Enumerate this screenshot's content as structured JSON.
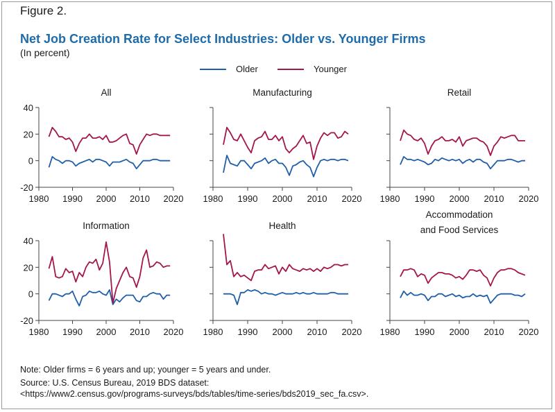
{
  "figure": {
    "label": "Figure 2.",
    "title": "Net Job Creation Rate for Select Industries: Older vs. Younger Firms",
    "subtitle": "(In percent)"
  },
  "legend": [
    {
      "name": "Older",
      "color": "#1f5ea8"
    },
    {
      "name": "Younger",
      "color": "#a3154b"
    }
  ],
  "notes": {
    "note": "Note: Older firms = 6 years and up; younger = 5 years and under.",
    "source": "Source: U.S. Census Bureau, 2019 BDS dataset:",
    "url": "<https://www2.census.gov/programs-surveys/bds/tables/time-series/bds2019_sec_fa.csv>."
  },
  "chart_data": [
    {
      "type": "line",
      "title": "All",
      "x": [
        1983,
        1984,
        1985,
        1986,
        1987,
        1988,
        1989,
        1990,
        1991,
        1992,
        1993,
        1994,
        1995,
        1996,
        1997,
        1998,
        1999,
        2000,
        2001,
        2002,
        2003,
        2004,
        2005,
        2006,
        2007,
        2008,
        2009,
        2010,
        2011,
        2012,
        2013,
        2014,
        2015,
        2016,
        2017,
        2018,
        2019
      ],
      "series": [
        {
          "name": "Older",
          "values": [
            -5,
            3,
            1,
            0,
            -2,
            0,
            0,
            -1,
            -4,
            -2,
            -1,
            0,
            1,
            -1,
            1,
            1,
            0,
            -1,
            -4,
            -1,
            -1,
            -1,
            0,
            1,
            -1,
            -2,
            -6,
            -3,
            0,
            0,
            0,
            1,
            1,
            0,
            0,
            0,
            0
          ]
        },
        {
          "name": "Younger",
          "values": [
            18,
            25,
            22,
            18,
            18,
            16,
            17,
            14,
            7,
            13,
            17,
            17,
            20,
            17,
            17,
            18,
            16,
            19,
            14,
            14,
            15,
            17,
            19,
            20,
            13,
            12,
            5,
            12,
            16,
            20,
            19,
            20,
            20,
            19,
            19,
            19,
            19
          ]
        }
      ],
      "xlim": [
        1980,
        2020
      ],
      "ylim": [
        -20,
        40
      ],
      "xticks": [
        "1980",
        "1990",
        "2000",
        "2010",
        "2020"
      ],
      "yticks": [
        "40",
        "20",
        "0",
        "-20"
      ]
    },
    {
      "type": "line",
      "title": "Manufacturing",
      "x": [
        1983,
        1984,
        1985,
        1986,
        1987,
        1988,
        1989,
        1990,
        1991,
        1992,
        1993,
        1994,
        1995,
        1996,
        1997,
        1998,
        1999,
        2000,
        2001,
        2002,
        2003,
        2004,
        2005,
        2006,
        2007,
        2008,
        2009,
        2010,
        2011,
        2012,
        2013,
        2014,
        2015,
        2016,
        2017,
        2018,
        2019
      ],
      "series": [
        {
          "name": "Older",
          "values": [
            -9,
            4,
            -2,
            -3,
            -4,
            0,
            0,
            -3,
            -6,
            -2,
            -1,
            0,
            2,
            -2,
            0,
            1,
            -2,
            -2,
            -5,
            -11,
            -4,
            -3,
            -1,
            0,
            -3,
            -5,
            -12,
            -5,
            0,
            1,
            0,
            1,
            1,
            0,
            1,
            1,
            0
          ]
        },
        {
          "name": "Younger",
          "values": [
            12,
            25,
            21,
            16,
            15,
            20,
            15,
            10,
            6,
            15,
            17,
            18,
            22,
            16,
            16,
            19,
            15,
            18,
            9,
            6,
            9,
            11,
            15,
            19,
            13,
            14,
            1,
            11,
            17,
            21,
            19,
            21,
            21,
            17,
            18,
            22,
            20
          ]
        }
      ],
      "xlim": [
        1980,
        2020
      ],
      "ylim": [
        -20,
        40
      ],
      "xticks": [
        "1980",
        "1990",
        "2000",
        "2010",
        "2020"
      ],
      "yticks": []
    },
    {
      "type": "line",
      "title": "Retail",
      "x": [
        1983,
        1984,
        1985,
        1986,
        1987,
        1988,
        1989,
        1990,
        1991,
        1992,
        1993,
        1994,
        1995,
        1996,
        1997,
        1998,
        1999,
        2000,
        2001,
        2002,
        2003,
        2004,
        2005,
        2006,
        2007,
        2008,
        2009,
        2010,
        2011,
        2012,
        2013,
        2014,
        2015,
        2016,
        2017,
        2018,
        2019
      ],
      "series": [
        {
          "name": "Older",
          "values": [
            -3,
            3,
            1,
            1,
            0,
            1,
            0,
            -1,
            -3,
            -2,
            1,
            0,
            2,
            1,
            0,
            1,
            0,
            1,
            -2,
            0,
            1,
            -1,
            1,
            1,
            -1,
            -2,
            -6,
            -3,
            0,
            0,
            0,
            1,
            1,
            0,
            -1,
            0,
            0
          ]
        },
        {
          "name": "Younger",
          "values": [
            15,
            23,
            20,
            19,
            16,
            15,
            17,
            13,
            5,
            11,
            15,
            16,
            18,
            15,
            15,
            16,
            14,
            18,
            11,
            15,
            16,
            17,
            17,
            15,
            14,
            11,
            4,
            11,
            14,
            18,
            17,
            18,
            19,
            19,
            15,
            15,
            15
          ]
        }
      ],
      "xlim": [
        1980,
        2020
      ],
      "ylim": [
        -20,
        40
      ],
      "xticks": [
        "1980",
        "1990",
        "2000",
        "2010",
        "2020"
      ],
      "yticks": []
    },
    {
      "type": "line",
      "title": "Information",
      "x": [
        1983,
        1984,
        1985,
        1986,
        1987,
        1988,
        1989,
        1990,
        1991,
        1992,
        1993,
        1994,
        1995,
        1996,
        1997,
        1998,
        1999,
        2000,
        2001,
        2002,
        2003,
        2004,
        2005,
        2006,
        2007,
        2008,
        2009,
        2010,
        2011,
        2012,
        2013,
        2014,
        2015,
        2016,
        2017,
        2018,
        2019
      ],
      "series": [
        {
          "name": "Older",
          "values": [
            -5,
            0,
            0,
            -1,
            -2,
            0,
            0,
            2,
            -4,
            -9,
            -2,
            -1,
            2,
            1,
            1,
            2,
            0,
            -1,
            3,
            -8,
            -4,
            -6,
            -3,
            -1,
            -1,
            -1,
            -5,
            -6,
            -2,
            -2,
            0,
            1,
            0,
            0,
            -4,
            -1,
            -1
          ]
        },
        {
          "name": "Younger",
          "values": [
            19,
            28,
            13,
            12,
            13,
            19,
            16,
            17,
            9,
            16,
            13,
            20,
            24,
            23,
            26,
            18,
            23,
            39,
            24,
            -7,
            4,
            10,
            16,
            20,
            13,
            12,
            5,
            13,
            27,
            33,
            20,
            21,
            24,
            23,
            20,
            21,
            21
          ]
        }
      ],
      "xlim": [
        1980,
        2020
      ],
      "ylim": [
        -20,
        40
      ],
      "xticks": [
        "1980",
        "1990",
        "2000",
        "2010",
        "2020"
      ],
      "yticks": [
        "40",
        "20",
        "0",
        "-20"
      ]
    },
    {
      "type": "line",
      "title": "Health",
      "x": [
        1983,
        1984,
        1985,
        1986,
        1987,
        1988,
        1989,
        1990,
        1991,
        1992,
        1993,
        1994,
        1995,
        1996,
        1997,
        1998,
        1999,
        2000,
        2001,
        2002,
        2003,
        2004,
        2005,
        2006,
        2007,
        2008,
        2009,
        2010,
        2011,
        2012,
        2013,
        2014,
        2015,
        2016,
        2017,
        2018,
        2019
      ],
      "series": [
        {
          "name": "Older",
          "values": [
            0,
            0,
            0,
            -1,
            -8,
            1,
            1,
            3,
            2,
            3,
            2,
            0,
            1,
            0,
            0,
            -1,
            0,
            1,
            0,
            0,
            0,
            1,
            0,
            1,
            0,
            0,
            1,
            0,
            0,
            0,
            0,
            1,
            1,
            0,
            0,
            0,
            0
          ]
        },
        {
          "name": "Younger",
          "values": [
            45,
            22,
            25,
            13,
            16,
            13,
            14,
            12,
            10,
            17,
            18,
            18,
            22,
            19,
            20,
            21,
            15,
            20,
            17,
            22,
            19,
            18,
            17,
            19,
            18,
            19,
            17,
            19,
            17,
            20,
            19,
            20,
            22,
            22,
            21,
            22,
            22
          ]
        }
      ],
      "xlim": [
        1980,
        2020
      ],
      "ylim": [
        -20,
        40
      ],
      "xticks": [
        "1980",
        "1990",
        "2000",
        "2010",
        "2020"
      ],
      "yticks": []
    },
    {
      "type": "line",
      "title": "Accommodation and Food Services",
      "x": [
        1983,
        1984,
        1985,
        1986,
        1987,
        1988,
        1989,
        1990,
        1991,
        1992,
        1993,
        1994,
        1995,
        1996,
        1997,
        1998,
        1999,
        2000,
        2001,
        2002,
        2003,
        2004,
        2005,
        2006,
        2007,
        2008,
        2009,
        2010,
        2011,
        2012,
        2013,
        2014,
        2015,
        2016,
        2017,
        2018,
        2019
      ],
      "series": [
        {
          "name": "Older",
          "values": [
            -3,
            2,
            -1,
            1,
            -1,
            -1,
            0,
            -1,
            -5,
            -2,
            -2,
            0,
            0,
            -2,
            -1,
            0,
            -2,
            -1,
            -3,
            -2,
            -2,
            0,
            -2,
            -1,
            -2,
            -1,
            -7,
            -4,
            -1,
            0,
            0,
            0,
            0,
            -1,
            -1,
            -2,
            0
          ]
        },
        {
          "name": "Younger",
          "values": [
            13,
            18,
            18,
            19,
            18,
            13,
            15,
            14,
            8,
            12,
            14,
            16,
            16,
            15,
            15,
            14,
            12,
            13,
            11,
            14,
            18,
            18,
            17,
            18,
            14,
            12,
            6,
            12,
            16,
            18,
            18,
            19,
            19,
            18,
            16,
            15,
            14
          ]
        }
      ],
      "xlim": [
        1980,
        2020
      ],
      "ylim": [
        -20,
        40
      ],
      "xticks": [
        "1980",
        "1990",
        "2000",
        "2010",
        "2020"
      ],
      "yticks": []
    }
  ]
}
